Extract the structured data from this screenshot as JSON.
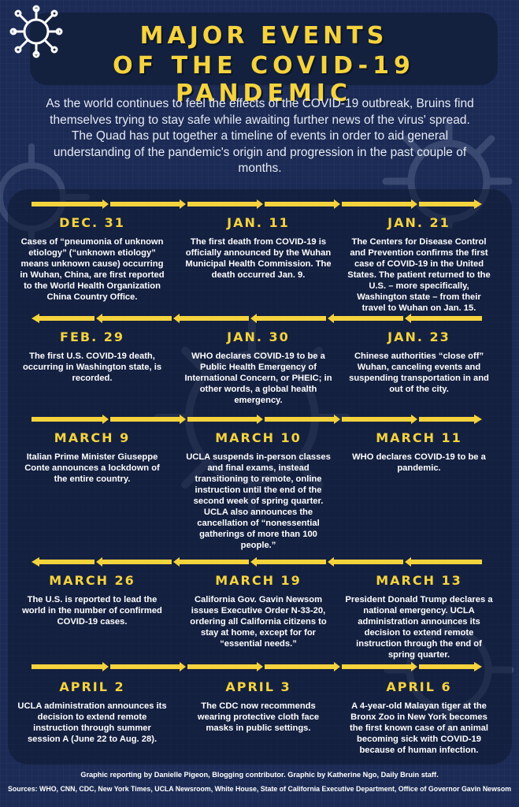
{
  "title": {
    "line1": "MAJOR EVENTS",
    "line2": "OF THE COVID-19 PANDEMIC"
  },
  "intro": "As the world continues to feel the effects of the COVID-19 outbreak, Bruins find themselves trying to stay safe while awaiting further news of the virus' spread. The Quad has put together a timeline of events in order to aid general understanding of the pandemic's origin and progression in the past couple of months.",
  "colors": {
    "accent": "#f5d33d",
    "background": "#1c2b55",
    "panel": "#13213f"
  },
  "icons": [
    "virus-icon"
  ],
  "timeline": [
    [
      {
        "date": "DEC. 31",
        "text": "Cases of “pneumonia of unknown etiology” (“unknown etiology” means unknown cause) occurring in Wuhan, China, are first reported to the World Health Organization China Country Office."
      },
      {
        "date": "JAN. 11",
        "text": "The first death from COVID-19 is officially announced by the Wuhan Municipal Health Commission. The death occurred Jan. 9."
      },
      {
        "date": "JAN. 21",
        "text": "The Centers for Disease Control and Prevention confirms the first case of COVID-19 in the United States. The patient returned to the U.S. – more specifically, Washington state – from their travel to Wuhan on Jan. 15."
      }
    ],
    [
      {
        "date": "FEB. 29",
        "text": "The first U.S. COVID-19 death, occurring in Washington state, is recorded."
      },
      {
        "date": "JAN. 30",
        "text": "WHO declares COVID-19 to be a Public Health Emergency of International Concern, or PHEIC; in other words, a global health emergency."
      },
      {
        "date": "JAN. 23",
        "text": "Chinese authorities “close off” Wuhan, canceling events and suspending transportation in and out of the city."
      }
    ],
    [
      {
        "date": "MARCH 9",
        "text": "Italian Prime Minister Giuseppe Conte announces a lockdown of the entire country."
      },
      {
        "date": "MARCH 10",
        "text": "UCLA suspends in-person classes and final exams, instead transitioning to remote, online instruction until the end of the second week of spring quarter. UCLA also announces the cancellation of “nonessential gatherings of more than 100 people.”"
      },
      {
        "date": "MARCH 11",
        "text": "WHO declares COVID-19 to be a pandemic."
      }
    ],
    [
      {
        "date": "MARCH 26",
        "text": "The U.S. is reported to lead the world in the number of confirmed COVID-19 cases."
      },
      {
        "date": "MARCH 19",
        "text": "California Gov. Gavin Newsom issues Executive Order N-33-20, ordering all California citizens to stay at home, except for for “essential needs.”"
      },
      {
        "date": "MARCH 13",
        "text": "President Donald Trump declares a national emergency. UCLA administration announces its decision to extend remote instruction through the end of spring quarter."
      }
    ],
    [
      {
        "date": "APRIL 2",
        "text": "UCLA administration announces its decision to extend remote instruction through summer session A (June 22 to Aug. 28)."
      },
      {
        "date": "APRIL 3",
        "text": "The CDC now recommends wearing protective cloth face masks in public settings."
      },
      {
        "date": "APRIL 6",
        "text": "A 4-year-old Malayan tiger at the Bronx Zoo in New York becomes the first known case of an animal becoming sick with COVID-19 because of human infection."
      }
    ]
  ],
  "credits": "Graphic reporting by Danielle Pigeon, Blogging contributor. Graphic by Katherine Ngo, Daily Bruin staff.",
  "sources": "Sources: WHO, CNN, CDC, New York Times, UCLA Newsroom, White House, State of California Executive Department, Office of Governor Gavin Newsom"
}
